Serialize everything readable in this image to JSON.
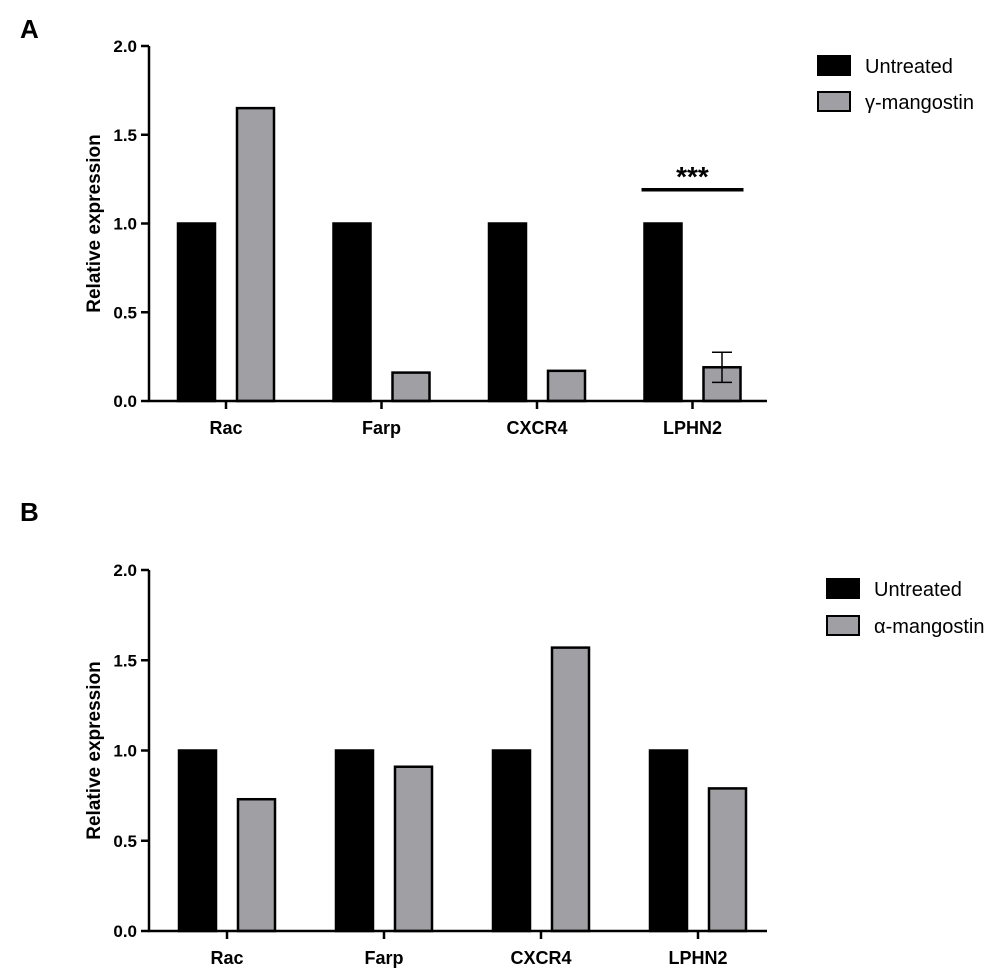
{
  "chart_data": [
    {
      "panel": "A",
      "type": "bar",
      "categories": [
        "Rac",
        "Farp",
        "CXCR4",
        "LPHN2"
      ],
      "series": [
        {
          "name": "Untreated",
          "values": [
            1.0,
            1.0,
            1.0,
            1.0
          ],
          "color": "#000000"
        },
        {
          "name": "γ-mangostin",
          "values": [
            1.65,
            0.16,
            0.17,
            0.19
          ],
          "color": "#a0a0a4",
          "error": [
            null,
            null,
            null,
            0.085
          ]
        }
      ],
      "ylabel": "Relative expression",
      "ylim": [
        0,
        2.0
      ],
      "yticks": [
        "0.0",
        "0.5",
        "1.0",
        "1.5",
        "2.0"
      ],
      "legend_position": "top-right",
      "grid": false,
      "annotations": [
        {
          "text": "***",
          "category": "LPHN2"
        }
      ]
    },
    {
      "panel": "B",
      "type": "bar",
      "categories": [
        "Rac",
        "Farp",
        "CXCR4",
        "LPHN2"
      ],
      "series": [
        {
          "name": "Untreated",
          "values": [
            1.0,
            1.0,
            1.0,
            1.0
          ],
          "color": "#000000"
        },
        {
          "name": "α-mangostin",
          "values": [
            0.73,
            0.91,
            1.57,
            0.79
          ],
          "color": "#a0a0a4"
        }
      ],
      "ylabel": "Relative expression",
      "ylim": [
        0,
        2.0
      ],
      "yticks": [
        "0.0",
        "0.5",
        "1.0",
        "1.5",
        "2.0"
      ],
      "legend_position": "top-right",
      "grid": false
    }
  ]
}
